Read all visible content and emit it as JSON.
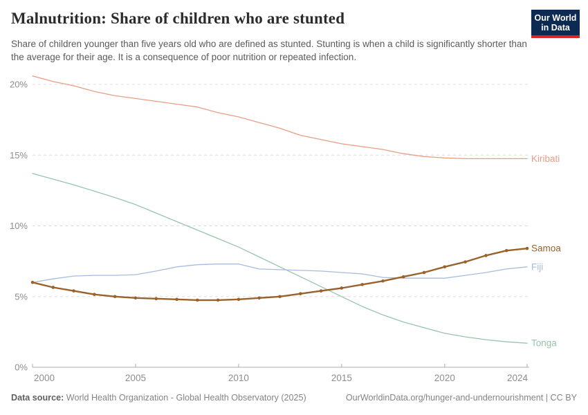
{
  "header": {
    "title": "Malnutrition: Share of children who are stunted",
    "subtitle": "Share of children younger than five years old who are defined as stunted. Stunting is when a child is significantly shorter than the average for their age. It is a consequence of poor nutrition or repeated infection.",
    "logo": {
      "line1": "Our World",
      "line2": "in Data",
      "bg_color": "#0d2a52",
      "accent_color": "#d6281e"
    }
  },
  "chart_data": {
    "type": "line",
    "title": "Malnutrition: Share of children who are stunted",
    "x": [
      2000,
      2001,
      2002,
      2003,
      2004,
      2005,
      2006,
      2007,
      2008,
      2009,
      2010,
      2011,
      2012,
      2013,
      2014,
      2015,
      2016,
      2017,
      2018,
      2019,
      2020,
      2021,
      2022,
      2023,
      2024
    ],
    "series": [
      {
        "name": "Kiribati",
        "color": "#e79d88",
        "emphasis": false,
        "values": [
          20.6,
          20.2,
          19.9,
          19.5,
          19.2,
          19.0,
          18.8,
          18.6,
          18.4,
          18.0,
          17.7,
          17.3,
          16.9,
          16.4,
          16.1,
          15.8,
          15.6,
          15.4,
          15.1,
          14.9,
          14.8,
          14.75,
          14.75,
          14.75,
          14.75
        ]
      },
      {
        "name": "Tonga",
        "color": "#97c4ab",
        "emphasis": false,
        "values": [
          13.7,
          13.3,
          12.9,
          12.45,
          12.0,
          11.5,
          10.9,
          10.3,
          9.7,
          9.1,
          8.5,
          7.8,
          7.1,
          6.4,
          5.7,
          5.0,
          4.3,
          3.7,
          3.2,
          2.8,
          2.4,
          2.15,
          1.95,
          1.8,
          1.7
        ]
      },
      {
        "name": "Fiji",
        "color": "#a6bcdc",
        "emphasis": false,
        "values": [
          6.0,
          6.25,
          6.45,
          6.5,
          6.5,
          6.55,
          6.8,
          7.1,
          7.25,
          7.3,
          7.3,
          6.95,
          6.9,
          6.85,
          6.8,
          6.7,
          6.6,
          6.35,
          6.3,
          6.3,
          6.3,
          6.5,
          6.7,
          6.95,
          7.1
        ]
      },
      {
        "name": "Samoa",
        "color": "#99622b",
        "emphasis": true,
        "values": [
          6.0,
          5.65,
          5.4,
          5.15,
          5.0,
          4.9,
          4.85,
          4.8,
          4.75,
          4.75,
          4.8,
          4.9,
          5.0,
          5.2,
          5.4,
          5.6,
          5.85,
          6.1,
          6.4,
          6.7,
          7.1,
          7.45,
          7.9,
          8.25,
          8.4
        ]
      }
    ],
    "ylim": [
      0,
      20
    ],
    "yticks": [
      0,
      5,
      10,
      15,
      20
    ],
    "ytick_suffix": "%",
    "xticks": [
      2000,
      2005,
      2010,
      2015,
      2020,
      2024
    ],
    "grid": true,
    "legend_position": "right-end-labels",
    "grid_color": "#dcdcdc",
    "axis_color": "#ababab",
    "tick_label_color": "#8d8d8d"
  },
  "footer": {
    "datasource_label": "Data source:",
    "datasource": "World Health Organization - Global Health Observatory (2025)",
    "link": "OurWorldinData.org/hunger-and-undernourishment",
    "separator": " | ",
    "license": "CC BY"
  }
}
